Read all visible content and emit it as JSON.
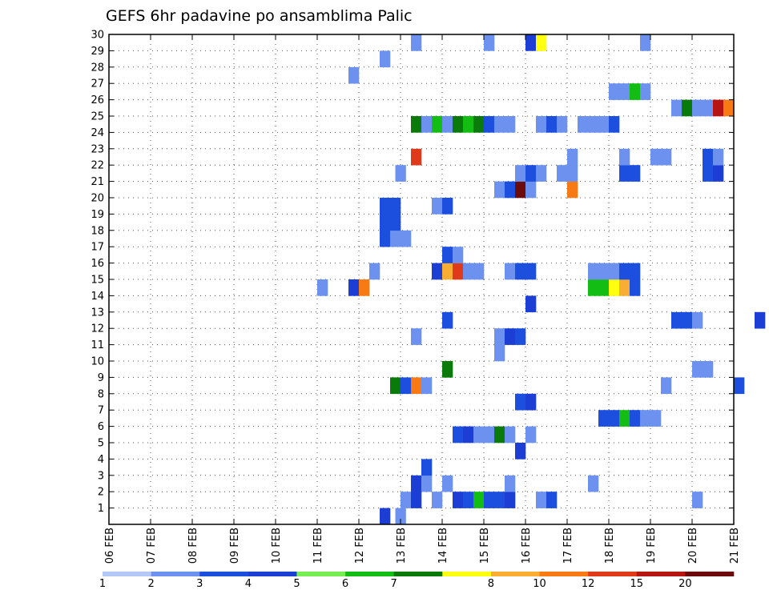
{
  "chart_data": {
    "type": "heatmap",
    "title": "GEFS 6hr padavine po ansamblima Palic",
    "xlabel": "",
    "ylabel": "",
    "x_tick_labels": [
      "06 FEB",
      "07 FEB",
      "08 FEB",
      "09 FEB",
      "10 FEB",
      "11 FEB",
      "12 FEB",
      "13 FEB",
      "14 FEB",
      "15 FEB",
      "16 FEB",
      "17 FEB",
      "18 FEB",
      "19 FEB",
      "20 FEB",
      "21 FEB"
    ],
    "x_range_days": [
      0,
      15
    ],
    "y_tick_labels": [
      "1",
      "2",
      "3",
      "4",
      "5",
      "6",
      "7",
      "8",
      "9",
      "10",
      "11",
      "12",
      "13",
      "14",
      "15",
      "16",
      "17",
      "18",
      "19",
      "20",
      "21",
      "22",
      "23",
      "24",
      "25",
      "26",
      "27",
      "28",
      "29",
      "30"
    ],
    "y_range": [
      0,
      30
    ],
    "grid": true,
    "legend": {
      "placement": "bottom",
      "colors": [
        "#b4c8f8",
        "#6c91ef",
        "#1d4fdf",
        "#1c3ed4",
        "#76ee52",
        "#14bd14",
        "#0a7a0a",
        "#ffff0f",
        "#f9ad32",
        "#f77a14",
        "#df3b1b",
        "#b61511",
        "#6c0b0c"
      ],
      "labels": [
        "1",
        "2",
        "3",
        "4",
        "5",
        "6",
        "7",
        "8",
        "10",
        "12",
        "15",
        "20"
      ]
    },
    "cells": [
      [
        6.5,
        0,
        3
      ],
      [
        6.875,
        0,
        1
      ],
      [
        7,
        1,
        1
      ],
      [
        7.25,
        1,
        3
      ],
      [
        7.75,
        1,
        1
      ],
      [
        8.25,
        1,
        3
      ],
      [
        8.5,
        1,
        2
      ],
      [
        8.75,
        1,
        5
      ],
      [
        9,
        1,
        2
      ],
      [
        9.25,
        1,
        2
      ],
      [
        9.5,
        1,
        3
      ],
      [
        10.25,
        1,
        1
      ],
      [
        10.5,
        1,
        2
      ],
      [
        14,
        1,
        1
      ],
      [
        7.25,
        2,
        3
      ],
      [
        7.5,
        2,
        1
      ],
      [
        8,
        2,
        1
      ],
      [
        9.5,
        2,
        1
      ],
      [
        11.5,
        2,
        1
      ],
      [
        7.5,
        3,
        2
      ],
      [
        9.75,
        4,
        3
      ],
      [
        8.25,
        5,
        2
      ],
      [
        8.5,
        5,
        3
      ],
      [
        8.75,
        5,
        1
      ],
      [
        9,
        5,
        1
      ],
      [
        9.25,
        5,
        6
      ],
      [
        9.5,
        5,
        1
      ],
      [
        10,
        5,
        1
      ],
      [
        11.75,
        6,
        2
      ],
      [
        12,
        6,
        2
      ],
      [
        12.25,
        6,
        5
      ],
      [
        12.5,
        6,
        2
      ],
      [
        12.75,
        6,
        1
      ],
      [
        13,
        6,
        1
      ],
      [
        9.75,
        7,
        2
      ],
      [
        10,
        7,
        3
      ],
      [
        6.75,
        8,
        6
      ],
      [
        7,
        8,
        2
      ],
      [
        7.25,
        8,
        9
      ],
      [
        7.5,
        8,
        1
      ],
      [
        13.25,
        8,
        1
      ],
      [
        15,
        8,
        2
      ],
      [
        8,
        9,
        6
      ],
      [
        14,
        9,
        1
      ],
      [
        14.25,
        9,
        1
      ],
      [
        9.25,
        10,
        1
      ],
      [
        7.25,
        11,
        1
      ],
      [
        9.25,
        11,
        1
      ],
      [
        9.5,
        11,
        3
      ],
      [
        9.75,
        11,
        2
      ],
      [
        8,
        12,
        2
      ],
      [
        13.5,
        12,
        2
      ],
      [
        13.75,
        12,
        2
      ],
      [
        14,
        12,
        1
      ],
      [
        15.5,
        12,
        3
      ],
      [
        10,
        13,
        3
      ],
      [
        5,
        14,
        1
      ],
      [
        5.75,
        14,
        3
      ],
      [
        6,
        14,
        9
      ],
      [
        11.5,
        14,
        5
      ],
      [
        11.75,
        14,
        5
      ],
      [
        12,
        14,
        7
      ],
      [
        12.25,
        14,
        8
      ],
      [
        12.5,
        14,
        2
      ],
      [
        6.25,
        15,
        1
      ],
      [
        7.75,
        15,
        3
      ],
      [
        8,
        15,
        8
      ],
      [
        8.25,
        15,
        10
      ],
      [
        8.5,
        15,
        1
      ],
      [
        8.75,
        15,
        1
      ],
      [
        9.5,
        15,
        1
      ],
      [
        9.75,
        15,
        2
      ],
      [
        10,
        15,
        2
      ],
      [
        11.5,
        15,
        1
      ],
      [
        11.75,
        15,
        1
      ],
      [
        12,
        15,
        1
      ],
      [
        12.25,
        15,
        2
      ],
      [
        12.5,
        15,
        2
      ],
      [
        8,
        16,
        2
      ],
      [
        8.25,
        16,
        1
      ],
      [
        6.5,
        17,
        2
      ],
      [
        6.75,
        17,
        1
      ],
      [
        7,
        17,
        1
      ],
      [
        6.5,
        18,
        2
      ],
      [
        6.75,
        18,
        2
      ],
      [
        6.5,
        19,
        2
      ],
      [
        6.75,
        19,
        2
      ],
      [
        7.75,
        19,
        1
      ],
      [
        8,
        19,
        2
      ],
      [
        9.25,
        20,
        1
      ],
      [
        9.5,
        20,
        2
      ],
      [
        9.75,
        20,
        12
      ],
      [
        10,
        20,
        1
      ],
      [
        11,
        20,
        9
      ],
      [
        6.875,
        21,
        1
      ],
      [
        9.75,
        21,
        1
      ],
      [
        10,
        21,
        2
      ],
      [
        10.25,
        21,
        1
      ],
      [
        10.75,
        21,
        1
      ],
      [
        11,
        21,
        1
      ],
      [
        12.25,
        21,
        2
      ],
      [
        12.5,
        21,
        2
      ],
      [
        14.25,
        21,
        2
      ],
      [
        14.5,
        21,
        3
      ],
      [
        7.25,
        22,
        10
      ],
      [
        11,
        22,
        1
      ],
      [
        12.25,
        22,
        1
      ],
      [
        13,
        22,
        1
      ],
      [
        13.25,
        22,
        1
      ],
      [
        14.25,
        22,
        2
      ],
      [
        14.5,
        22,
        1
      ],
      [
        7.25,
        24,
        6
      ],
      [
        7.5,
        24,
        1
      ],
      [
        7.75,
        24,
        5
      ],
      [
        8,
        24,
        1
      ],
      [
        8.25,
        24,
        6
      ],
      [
        8.5,
        24,
        5
      ],
      [
        8.75,
        24,
        6
      ],
      [
        9,
        24,
        2
      ],
      [
        9.25,
        24,
        1
      ],
      [
        9.5,
        24,
        1
      ],
      [
        10.25,
        24,
        1
      ],
      [
        10.5,
        24,
        2
      ],
      [
        10.75,
        24,
        1
      ],
      [
        11.25,
        24,
        1
      ],
      [
        11.5,
        24,
        1
      ],
      [
        11.75,
        24,
        1
      ],
      [
        12,
        24,
        2
      ],
      [
        13.5,
        25,
        1
      ],
      [
        13.75,
        25,
        6
      ],
      [
        14,
        25,
        1
      ],
      [
        14.25,
        25,
        1
      ],
      [
        14.5,
        25,
        11
      ],
      [
        14.75,
        25,
        9
      ],
      [
        12,
        26,
        1
      ],
      [
        12.25,
        26,
        1
      ],
      [
        12.5,
        26,
        5
      ],
      [
        12.75,
        26,
        1
      ],
      [
        5.75,
        27,
        1
      ],
      [
        6.5,
        28,
        1
      ],
      [
        7.25,
        29,
        1
      ],
      [
        9,
        29,
        1
      ],
      [
        10,
        29,
        3
      ],
      [
        10.25,
        29,
        7
      ],
      [
        12.75,
        29,
        1
      ]
    ]
  }
}
